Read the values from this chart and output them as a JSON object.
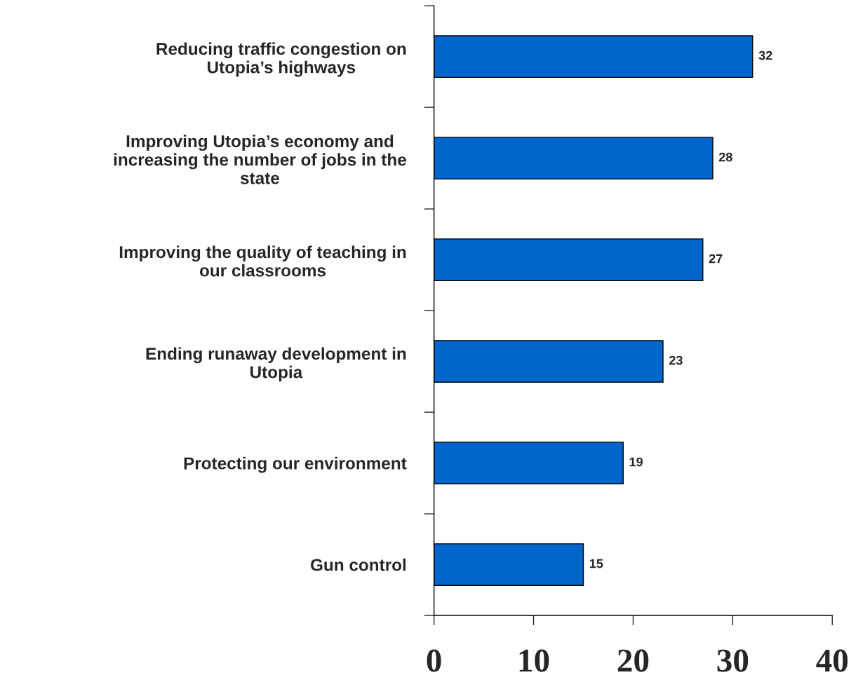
{
  "chart_data": {
    "type": "bar",
    "orientation": "horizontal",
    "categories": [
      "Reducing traffic congestion on\nUtopia’s highways",
      "Improving Utopia’s economy and\nincreasing the number of jobs in the\nstate",
      "Improving the quality of teaching in\nour classrooms",
      "Ending runaway development in\nUtopia",
      "Protecting our environment",
      "Gun control"
    ],
    "values": [
      32,
      28,
      27,
      23,
      19,
      15
    ],
    "color": "#0066cc",
    "xlim": [
      0,
      40
    ],
    "xticks": [
      0,
      10,
      20,
      30,
      40
    ],
    "data_labels": true,
    "grid": false,
    "legend": false
  }
}
